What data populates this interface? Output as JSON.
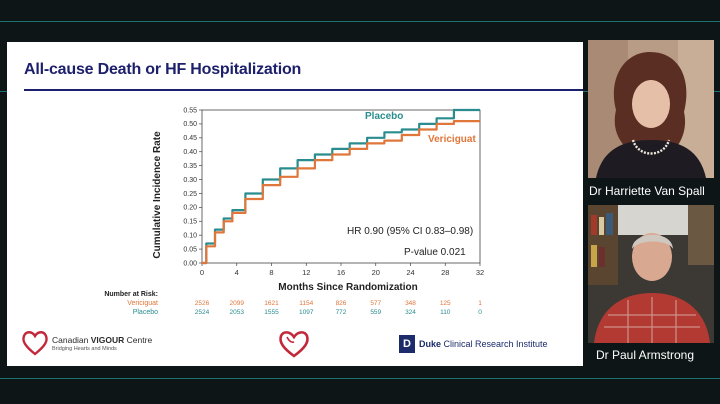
{
  "slide": {
    "title": "All-cause Death or HF Hospitalization",
    "colors": {
      "title": "#1c1f6b",
      "vericiguat": "#e0763a",
      "placebo": "#2a8c8f"
    }
  },
  "chart_data": {
    "type": "line",
    "title": "All-cause Death or HF Hospitalization",
    "xlabel": "Months Since Randomization",
    "ylabel": "Cumulative Incidence Rate",
    "xlim": [
      0,
      32
    ],
    "ylim": [
      0,
      0.55
    ],
    "xticks": [
      0,
      4,
      8,
      12,
      16,
      20,
      24,
      28,
      32
    ],
    "yticks": [
      0.0,
      0.05,
      0.1,
      0.15,
      0.2,
      0.25,
      0.3,
      0.35,
      0.4,
      0.45,
      0.5,
      0.55
    ],
    "ytick_labels": [
      "0.00",
      "0.05",
      "0.10",
      "0.15",
      "0.20",
      "0.25",
      "0.30",
      "0.35",
      "0.40",
      "0.45",
      "0.50",
      "0.55"
    ],
    "series": [
      {
        "name": "Placebo",
        "color": "#2a8c8f",
        "x": [
          0,
          1,
          2,
          3,
          4,
          6,
          8,
          10,
          12,
          14,
          16,
          18,
          20,
          22,
          24,
          26,
          28,
          30,
          32
        ],
        "y": [
          0,
          0.07,
          0.12,
          0.16,
          0.19,
          0.25,
          0.3,
          0.34,
          0.37,
          0.39,
          0.41,
          0.43,
          0.45,
          0.47,
          0.48,
          0.5,
          0.52,
          0.55,
          0.55
        ]
      },
      {
        "name": "Vericiguat",
        "color": "#e0763a",
        "x": [
          0,
          1,
          2,
          3,
          4,
          6,
          8,
          10,
          12,
          14,
          16,
          18,
          20,
          22,
          24,
          26,
          28,
          30,
          32
        ],
        "y": [
          0,
          0.06,
          0.11,
          0.15,
          0.18,
          0.23,
          0.28,
          0.31,
          0.34,
          0.37,
          0.39,
          0.41,
          0.43,
          0.44,
          0.46,
          0.48,
          0.5,
          0.51,
          0.51
        ]
      }
    ],
    "annotations": {
      "hr": "HR 0.90 (95% CI 0.83–0.98)",
      "p": "P-value 0.021"
    },
    "risk_table": {
      "heading": "Number at Risk:",
      "rows": [
        {
          "label": "Vericiguat",
          "values": [
            "2526",
            "2099",
            "1621",
            "1154",
            "826",
            "577",
            "348",
            "125",
            "1"
          ]
        },
        {
          "label": "Placebo",
          "values": [
            "2524",
            "2053",
            "1555",
            "1097",
            "772",
            "559",
            "324",
            "110",
            "0"
          ]
        }
      ]
    }
  },
  "footer": {
    "left_logo_prefix": "Canadian ",
    "left_logo_bold": "VIGOUR",
    "left_logo_suffix": " Centre",
    "left_logo_tagline": "Bridging Hearts and Minds",
    "right_logo_mark": "D",
    "right_logo_bold": "Duke",
    "right_logo_rest": " Clinical Research Institute"
  },
  "participants": [
    {
      "name": "Dr Harriette Van Spall"
    },
    {
      "name": "Dr Paul Armstrong"
    }
  ]
}
